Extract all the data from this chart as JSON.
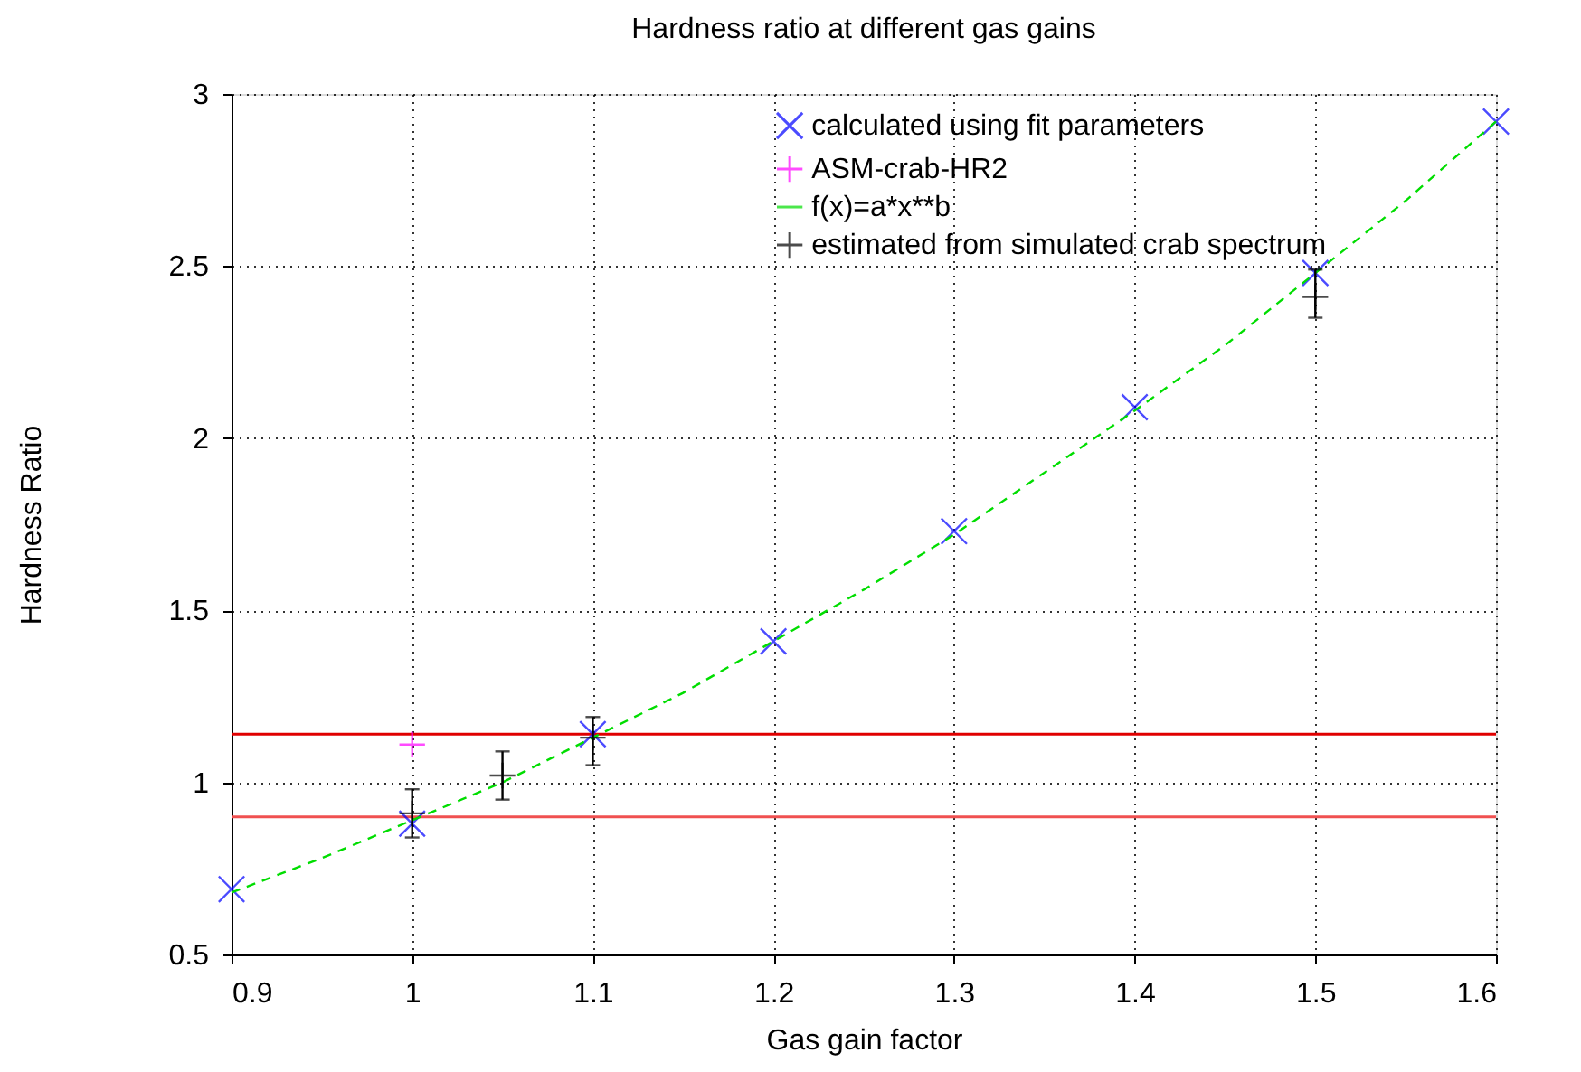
{
  "chart_data": {
    "type": "scatter",
    "title": "Hardness ratio at different gas gains",
    "xlabel": "Gas gain factor",
    "ylabel": "Hardness Ratio",
    "xlim": [
      0.9,
      1.6
    ],
    "xticks": [
      0.9,
      1,
      1.1,
      1.2,
      1.3,
      1.4,
      1.5,
      1.6
    ],
    "ylim": [
      0.5,
      3
    ],
    "yticks": [
      0.5,
      1,
      1.5,
      2,
      2.5,
      3
    ],
    "grid": true,
    "legend": "top right",
    "series": [
      {
        "name": "calculated using fit parameters",
        "type": "scatter",
        "marker": "cross",
        "color": "#0000ff",
        "x": [
          0.9,
          1.0,
          1.1,
          1.2,
          1.3,
          1.4,
          1.5,
          1.6
        ],
        "values": [
          0.69,
          0.88,
          1.14,
          1.41,
          1.73,
          2.09,
          2.48,
          2.92
        ]
      },
      {
        "name": "ASM-crab-HR2",
        "type": "scatter",
        "marker": "plus",
        "color": "#ff00ff",
        "x": [
          1.0
        ],
        "values": [
          1.11
        ]
      },
      {
        "name": "f(x)=a*x**b",
        "type": "line",
        "line_style": "dashed",
        "color": "#00dd00",
        "x": [
          0.9,
          0.95,
          1.0,
          1.05,
          1.1,
          1.15,
          1.2,
          1.25,
          1.3,
          1.35,
          1.4,
          1.45,
          1.5,
          1.55,
          1.6
        ],
        "values": [
          0.68,
          0.78,
          0.89,
          1.0,
          1.13,
          1.26,
          1.41,
          1.56,
          1.72,
          1.9,
          2.08,
          2.27,
          2.48,
          2.69,
          2.92
        ]
      },
      {
        "name": "estimated from simulated crab spectrum",
        "type": "scatter",
        "marker": "plus",
        "color": "#000000",
        "x": [
          1.0,
          1.05,
          1.1,
          1.5
        ],
        "values": [
          0.91,
          1.02,
          1.13,
          2.41
        ],
        "errors": [
          [
            0.84,
            0.98
          ],
          [
            0.95,
            1.09
          ],
          [
            1.05,
            1.19
          ],
          [
            2.35,
            2.49
          ]
        ]
      }
    ],
    "ref_lines": [
      {
        "axis": "y",
        "value": 1.14,
        "color": "#e00000"
      },
      {
        "axis": "y",
        "value": 0.9,
        "color": "#f05050"
      }
    ]
  }
}
